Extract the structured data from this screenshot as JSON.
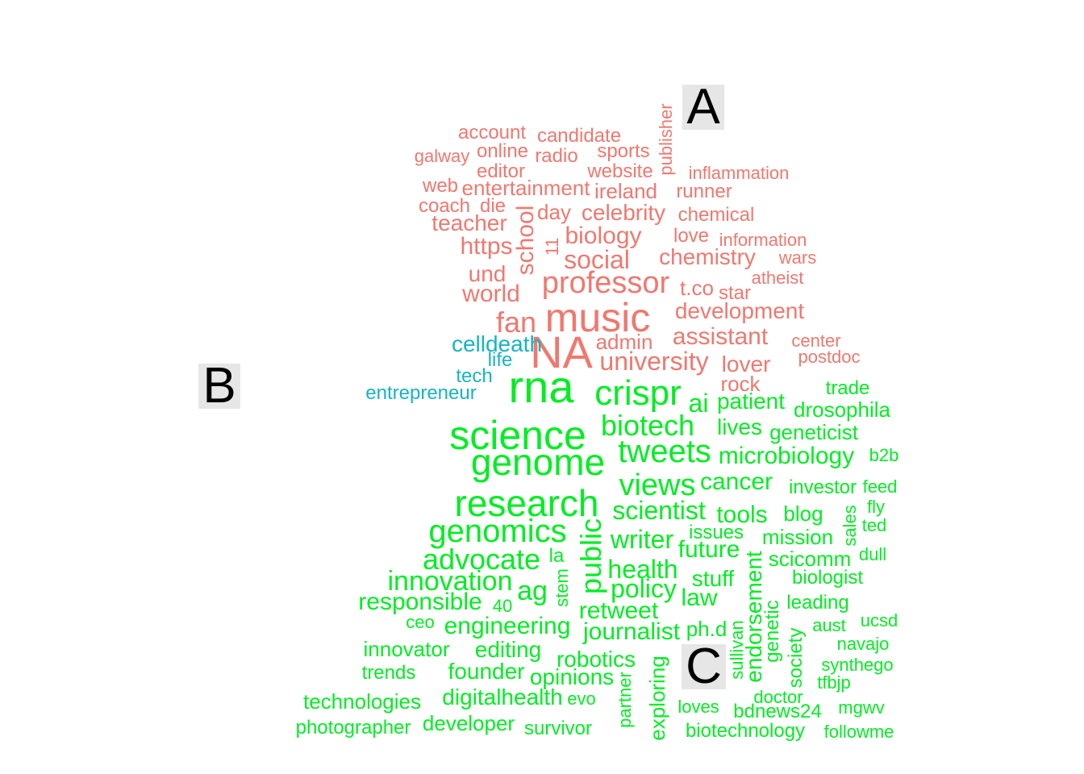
{
  "cluster_labels": [
    "A",
    "B",
    "C"
  ],
  "colors": {
    "A": "#f0786f",
    "B": "#15b4c4",
    "C": "#00ee22"
  },
  "words": [
    {
      "t": "account",
      "g": "A"
    },
    {
      "t": "candidate",
      "g": "A"
    },
    {
      "t": "publisher",
      "g": "A"
    },
    {
      "t": "galway",
      "g": "A"
    },
    {
      "t": "online",
      "g": "A"
    },
    {
      "t": "radio",
      "g": "A"
    },
    {
      "t": "sports",
      "g": "A"
    },
    {
      "t": "editor",
      "g": "A"
    },
    {
      "t": "website",
      "g": "A"
    },
    {
      "t": "inflammation",
      "g": "A"
    },
    {
      "t": "web",
      "g": "A"
    },
    {
      "t": "entertainment",
      "g": "A"
    },
    {
      "t": "ireland",
      "g": "A"
    },
    {
      "t": "runner",
      "g": "A"
    },
    {
      "t": "coach",
      "g": "A"
    },
    {
      "t": "die",
      "g": "A"
    },
    {
      "t": "school",
      "g": "A"
    },
    {
      "t": "day",
      "g": "A"
    },
    {
      "t": "celebrity",
      "g": "A"
    },
    {
      "t": "chemical",
      "g": "A"
    },
    {
      "t": "teacher",
      "g": "A"
    },
    {
      "t": "https",
      "g": "A"
    },
    {
      "t": "11",
      "g": "A"
    },
    {
      "t": "biology",
      "g": "A"
    },
    {
      "t": "love",
      "g": "A"
    },
    {
      "t": "information",
      "g": "A"
    },
    {
      "t": "social",
      "g": "A"
    },
    {
      "t": "chemistry",
      "g": "A"
    },
    {
      "t": "wars",
      "g": "A"
    },
    {
      "t": "und",
      "g": "A"
    },
    {
      "t": "professor",
      "g": "A"
    },
    {
      "t": "atheist",
      "g": "A"
    },
    {
      "t": "world",
      "g": "A"
    },
    {
      "t": "t.co",
      "g": "A"
    },
    {
      "t": "star",
      "g": "A"
    },
    {
      "t": "music",
      "g": "A"
    },
    {
      "t": "development",
      "g": "A"
    },
    {
      "t": "fan",
      "g": "A"
    },
    {
      "t": "admin",
      "g": "A"
    },
    {
      "t": "assistant",
      "g": "A"
    },
    {
      "t": "center",
      "g": "A"
    },
    {
      "t": "NA",
      "g": "A"
    },
    {
      "t": "university",
      "g": "A"
    },
    {
      "t": "postdoc",
      "g": "A"
    },
    {
      "t": "lover",
      "g": "A"
    },
    {
      "t": "rock",
      "g": "A"
    },
    {
      "t": "celldeath",
      "g": "B"
    },
    {
      "t": "life",
      "g": "B"
    },
    {
      "t": "tech",
      "g": "B"
    },
    {
      "t": "entrepreneur",
      "g": "B"
    },
    {
      "t": "rna",
      "g": "C"
    },
    {
      "t": "crispr",
      "g": "C"
    },
    {
      "t": "ai",
      "g": "C"
    },
    {
      "t": "patient",
      "g": "C"
    },
    {
      "t": "trade",
      "g": "C"
    },
    {
      "t": "drosophila",
      "g": "C"
    },
    {
      "t": "biotech",
      "g": "C"
    },
    {
      "t": "lives",
      "g": "C"
    },
    {
      "t": "geneticist",
      "g": "C"
    },
    {
      "t": "science",
      "g": "C"
    },
    {
      "t": "tweets",
      "g": "C"
    },
    {
      "t": "microbiology",
      "g": "C"
    },
    {
      "t": "b2b",
      "g": "C"
    },
    {
      "t": "genome",
      "g": "C"
    },
    {
      "t": "views",
      "g": "C"
    },
    {
      "t": "cancer",
      "g": "C"
    },
    {
      "t": "investor",
      "g": "C"
    },
    {
      "t": "feed",
      "g": "C"
    },
    {
      "t": "research",
      "g": "C"
    },
    {
      "t": "scientist",
      "g": "C"
    },
    {
      "t": "tools",
      "g": "C"
    },
    {
      "t": "blog",
      "g": "C"
    },
    {
      "t": "sales",
      "g": "C"
    },
    {
      "t": "fly",
      "g": "C"
    },
    {
      "t": "genomics",
      "g": "C"
    },
    {
      "t": "public",
      "g": "C"
    },
    {
      "t": "writer",
      "g": "C"
    },
    {
      "t": "issues",
      "g": "C"
    },
    {
      "t": "mission",
      "g": "C"
    },
    {
      "t": "ted",
      "g": "C"
    },
    {
      "t": "advocate",
      "g": "C"
    },
    {
      "t": "la",
      "g": "C"
    },
    {
      "t": "future",
      "g": "C"
    },
    {
      "t": "endorsement",
      "g": "C"
    },
    {
      "t": "scicomm",
      "g": "C"
    },
    {
      "t": "dull",
      "g": "C"
    },
    {
      "t": "innovation",
      "g": "C"
    },
    {
      "t": "health",
      "g": "C"
    },
    {
      "t": "stuff",
      "g": "C"
    },
    {
      "t": "biologist",
      "g": "C"
    },
    {
      "t": "responsible",
      "g": "C"
    },
    {
      "t": "ag",
      "g": "C"
    },
    {
      "t": "stem",
      "g": "C"
    },
    {
      "t": "policy",
      "g": "C"
    },
    {
      "t": "law",
      "g": "C"
    },
    {
      "t": "genetic",
      "g": "C"
    },
    {
      "t": "leading",
      "g": "C"
    },
    {
      "t": "40",
      "g": "C"
    },
    {
      "t": "retweet",
      "g": "C"
    },
    {
      "t": "aust",
      "g": "C"
    },
    {
      "t": "ucsd",
      "g": "C"
    },
    {
      "t": "ceo",
      "g": "C"
    },
    {
      "t": "engineering",
      "g": "C"
    },
    {
      "t": "journalist",
      "g": "C"
    },
    {
      "t": "ph.d",
      "g": "C"
    },
    {
      "t": "sullivan",
      "g": "C"
    },
    {
      "t": "society",
      "g": "C"
    },
    {
      "t": "innovator",
      "g": "C"
    },
    {
      "t": "editing",
      "g": "C"
    },
    {
      "t": "robotics",
      "g": "C"
    },
    {
      "t": "navajo",
      "g": "C"
    },
    {
      "t": "trends",
      "g": "C"
    },
    {
      "t": "founder",
      "g": "C"
    },
    {
      "t": "opinions",
      "g": "C"
    },
    {
      "t": "partner",
      "g": "C"
    },
    {
      "t": "synthego",
      "g": "C"
    },
    {
      "t": "tfbjp",
      "g": "C"
    },
    {
      "t": "exploring",
      "g": "C"
    },
    {
      "t": "technologies",
      "g": "C"
    },
    {
      "t": "digitalhealth",
      "g": "C"
    },
    {
      "t": "evo",
      "g": "C"
    },
    {
      "t": "doctor",
      "g": "C"
    },
    {
      "t": "bdnews24",
      "g": "C"
    },
    {
      "t": "mgwv",
      "g": "C"
    },
    {
      "t": "loves",
      "g": "C"
    },
    {
      "t": "photographer",
      "g": "C"
    },
    {
      "t": "developer",
      "g": "C"
    },
    {
      "t": "survivor",
      "g": "C"
    },
    {
      "t": "biotechnology",
      "g": "C"
    },
    {
      "t": "followme",
      "g": "C"
    }
  ]
}
